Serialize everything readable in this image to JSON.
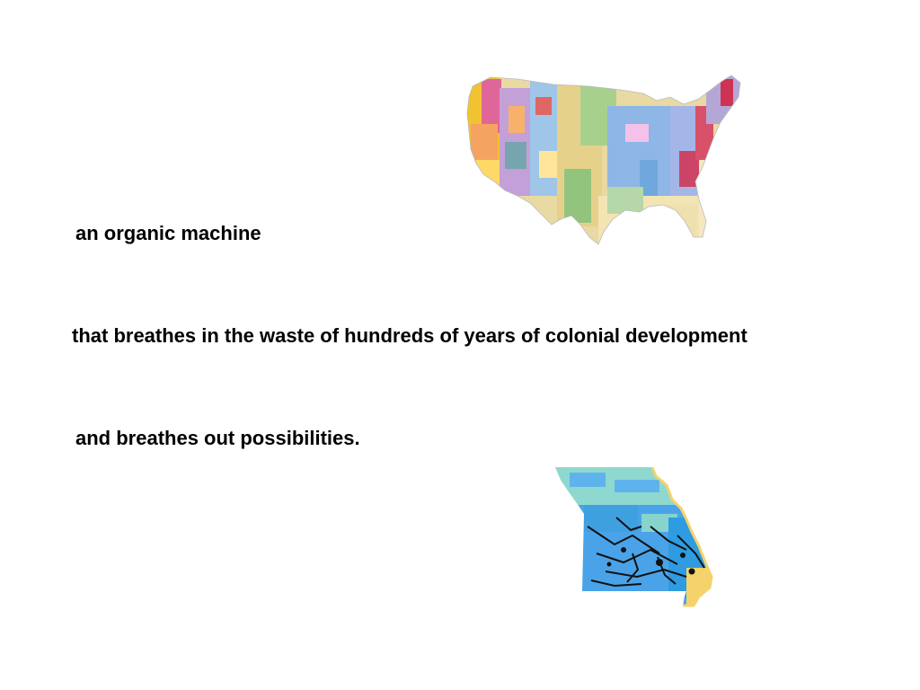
{
  "slide": {
    "lines": [
      "an organic machine",
      "that breathes in the waste of hundreds of years of colonial development",
      "and breathes out possibilities."
    ],
    "images": [
      {
        "id": "us-geologic-map",
        "depicts": "geologic map of the contiguous United States"
      },
      {
        "id": "missouri-geologic-map",
        "depicts": "geologic map of Missouri"
      }
    ],
    "colors": {
      "background": "#ffffff",
      "text": "#000000"
    }
  }
}
